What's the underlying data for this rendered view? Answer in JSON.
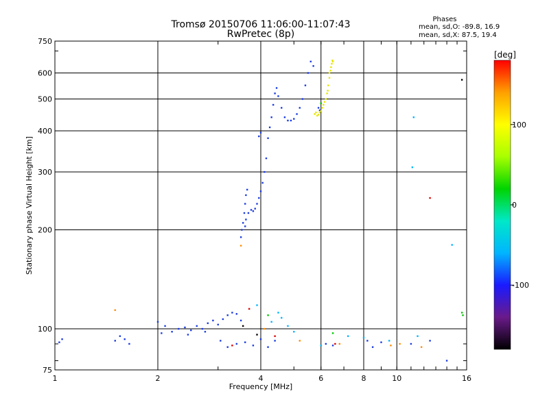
{
  "chart_data": {
    "type": "scatter",
    "title": "Tromsø 20150706 11:06:00-11:07:43",
    "subtitle": "RwPretec (8p)",
    "xlabel": "Frequency [MHz]",
    "ylabel": "Stationary phase Virtual Height [km]",
    "x_scale": "log",
    "y_scale": "log",
    "xlim": [
      1,
      16
    ],
    "ylim": [
      75,
      750
    ],
    "x_ticks": [
      1,
      2,
      4,
      6,
      8,
      10,
      16
    ],
    "y_ticks": [
      75,
      100,
      200,
      300,
      400,
      500,
      600,
      750
    ],
    "grid": true,
    "phase_stats": {
      "title": "Phases",
      "line1": "mean, sd,O: -89.8, 16.9",
      "line2": "mean, sd,X: 87.5, 19.4"
    },
    "colorbar": {
      "label": "[deg]",
      "range": [
        -180,
        180
      ],
      "ticks": [
        100,
        0,
        -100
      ],
      "colormap": [
        "#000000",
        "#6a1a8a",
        "#1a1aff",
        "#00b5ff",
        "#00e8c8",
        "#00d400",
        "#a8ff00",
        "#ffff00",
        "#ffa000",
        "#ff0000"
      ]
    },
    "series": [
      {
        "color": "#1a3be0",
        "points": [
          [
            3.5,
            190
          ],
          [
            3.52,
            200
          ],
          [
            3.55,
            210
          ],
          [
            3.58,
            225
          ],
          [
            3.6,
            240
          ],
          [
            3.62,
            255
          ],
          [
            3.65,
            265
          ],
          [
            3.6,
            205
          ],
          [
            3.62,
            215
          ],
          [
            3.68,
            225
          ],
          [
            3.75,
            230
          ],
          [
            3.8,
            228
          ],
          [
            3.85,
            232
          ],
          [
            3.9,
            240
          ],
          [
            3.95,
            250
          ],
          [
            4.0,
            262
          ],
          [
            4.05,
            278
          ],
          [
            4.1,
            300
          ],
          [
            4.15,
            330
          ],
          [
            4.2,
            380
          ],
          [
            4.25,
            410
          ],
          [
            4.3,
            440
          ],
          [
            4.35,
            480
          ],
          [
            4.4,
            520
          ],
          [
            4.45,
            540
          ],
          [
            4.5,
            510
          ],
          [
            4.6,
            470
          ],
          [
            4.7,
            440
          ],
          [
            4.8,
            430
          ],
          [
            4.9,
            430
          ],
          [
            5.0,
            435
          ],
          [
            5.1,
            450
          ],
          [
            5.2,
            470
          ],
          [
            5.3,
            500
          ],
          [
            5.4,
            550
          ],
          [
            5.5,
            600
          ],
          [
            5.6,
            650
          ],
          [
            5.7,
            630
          ],
          [
            4.0,
            395
          ],
          [
            3.95,
            385
          ],
          [
            1.05,
            93
          ],
          [
            1.03,
            91
          ],
          [
            1.5,
            92
          ],
          [
            1.55,
            95
          ],
          [
            1.6,
            93
          ],
          [
            1.65,
            90
          ],
          [
            2.0,
            105
          ],
          [
            2.1,
            102
          ],
          [
            2.2,
            98
          ],
          [
            2.3,
            100
          ],
          [
            2.4,
            101
          ],
          [
            2.5,
            99
          ],
          [
            2.6,
            102
          ],
          [
            2.7,
            100
          ],
          [
            2.8,
            104
          ],
          [
            2.9,
            106
          ],
          [
            3.0,
            103
          ],
          [
            3.1,
            107
          ],
          [
            3.2,
            110
          ],
          [
            3.3,
            112
          ],
          [
            3.4,
            111
          ],
          [
            3.5,
            106
          ],
          [
            2.05,
            97
          ],
          [
            2.45,
            96
          ],
          [
            2.75,
            98
          ],
          [
            3.05,
            92
          ],
          [
            3.2,
            88
          ],
          [
            3.4,
            90
          ],
          [
            3.6,
            91
          ],
          [
            3.8,
            89
          ],
          [
            4.0,
            93
          ],
          [
            4.2,
            88
          ],
          [
            4.4,
            92
          ],
          [
            6.2,
            90
          ],
          [
            6.5,
            89
          ],
          [
            8.2,
            92
          ],
          [
            8.5,
            88
          ],
          [
            9.0,
            91
          ],
          [
            11.0,
            90
          ],
          [
            12.5,
            92
          ],
          [
            14.0,
            80
          ],
          [
            5.95,
            462
          ],
          [
            5.9,
            470
          ]
        ]
      },
      {
        "color": "#e6e600",
        "points": [
          [
            5.75,
            450
          ],
          [
            5.85,
            445
          ],
          [
            5.95,
            455
          ],
          [
            6.05,
            470
          ],
          [
            6.15,
            490
          ],
          [
            6.25,
            520
          ],
          [
            6.3,
            550
          ],
          [
            6.35,
            580
          ],
          [
            6.4,
            610
          ],
          [
            6.45,
            640
          ],
          [
            6.5,
            650
          ],
          [
            6.2,
            500
          ],
          [
            6.0,
            460
          ],
          [
            5.8,
            455
          ],
          [
            6.35,
            600
          ],
          [
            6.42,
            625
          ],
          [
            6.1,
            480
          ],
          [
            5.9,
            448
          ],
          [
            6.28,
            530
          ],
          [
            6.48,
            655
          ]
        ]
      },
      {
        "color": "#00b5ff",
        "points": [
          [
            11.2,
            440
          ],
          [
            11.1,
            310
          ],
          [
            14.5,
            180
          ],
          [
            4.5,
            112
          ],
          [
            4.6,
            108
          ],
          [
            4.8,
            102
          ],
          [
            5.0,
            98
          ],
          [
            6.0,
            89
          ],
          [
            7.2,
            95
          ],
          [
            8.0,
            94
          ],
          [
            9.5,
            92
          ],
          [
            11.5,
            95
          ],
          [
            3.9,
            118
          ],
          [
            4.3,
            105
          ]
        ]
      },
      {
        "color": "#ff8c00",
        "points": [
          [
            1.5,
            114
          ],
          [
            3.5,
            179
          ],
          [
            9.6,
            89
          ],
          [
            10.2,
            90
          ],
          [
            11.8,
            88
          ],
          [
            5.2,
            92
          ],
          [
            6.8,
            90
          ],
          [
            4.1,
            100
          ]
        ]
      },
      {
        "color": "#00c800",
        "points": [
          [
            6.0,
            485
          ],
          [
            15.6,
            110
          ],
          [
            15.5,
            112
          ],
          [
            4.2,
            110
          ],
          [
            6.5,
            97
          ]
        ]
      },
      {
        "color": "#e00000",
        "points": [
          [
            12.5,
            250
          ],
          [
            6.6,
            90
          ],
          [
            3.7,
            115
          ],
          [
            3.3,
            89
          ],
          [
            4.4,
            95
          ]
        ]
      },
      {
        "color": "#000000",
        "points": [
          [
            15.5,
            572
          ],
          [
            3.9,
            96
          ],
          [
            3.55,
            102
          ]
        ]
      }
    ]
  }
}
